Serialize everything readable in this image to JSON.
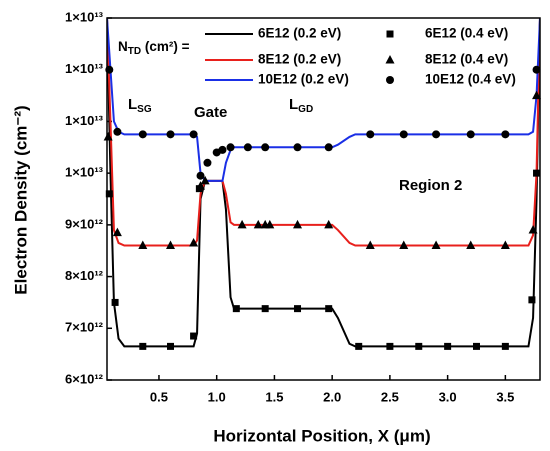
{
  "chart_data": {
    "type": "line",
    "xlabel": "Horizontal Position, X (μm)",
    "ylabel": "Electron Density (cm⁻²)",
    "xlim": [
      0.05,
      3.8
    ],
    "ylim": [
      6000000000000.0,
      13000000000000.0
    ],
    "xticks": [
      0.5,
      {
        "value": 1,
        "label": "1.0"
      },
      1.5,
      {
        "value": 2,
        "label": "2.0"
      },
      2.5,
      {
        "value": 3,
        "label": "3.0"
      },
      3.5
    ],
    "yticks": [
      {
        "value": 6000000000000.0,
        "label": "6×10¹²"
      },
      {
        "value": 7000000000000.0,
        "label": "7×10¹²"
      },
      {
        "value": 8000000000000.0,
        "label": "8×10¹²"
      },
      {
        "value": 9000000000000.0,
        "label": "9×10¹²"
      },
      {
        "value": 10000000000000.0,
        "label": "1×10¹³"
      },
      {
        "value": 11000000000000.0,
        "label": "1×10¹³"
      },
      {
        "value": 12000000000000.0,
        "label": "1×10¹³"
      },
      {
        "value": 13000000000000.0,
        "label": "1×10¹³"
      }
    ],
    "legend_title": {
      "base": "N",
      "sub": "TD",
      "after": " (cm²) ="
    },
    "legend": "top",
    "annotations": [
      {
        "base": "L",
        "sub": "SG"
      },
      {
        "base": "Gate"
      },
      {
        "base": "L",
        "sub": "GD"
      },
      {
        "base": "Region 2"
      }
    ],
    "series": [
      {
        "name": "6E12 (0.2 eV)",
        "color": "#000000",
        "kind": "line",
        "x": [
          0.05,
          0.08,
          0.11,
          0.15,
          0.2,
          0.8,
          0.83,
          0.86,
          0.9,
          1.05,
          1.08,
          1.12,
          1.15,
          2.0,
          2.05,
          2.15,
          2.2,
          3.7,
          3.74,
          3.77,
          3.8
        ],
        "values": [
          13000000000000.0,
          10000000000000.0,
          7500000000000.0,
          6800000000000.0,
          6650000000000.0,
          6650000000000.0,
          6900000000000.0,
          9500000000000.0,
          9850000000000.0,
          9850000000000.0,
          9300000000000.0,
          7600000000000.0,
          7380000000000.0,
          7380000000000.0,
          7200000000000.0,
          6700000000000.0,
          6650000000000.0,
          6650000000000.0,
          7200000000000.0,
          9500000000000.0,
          13000000000000.0
        ]
      },
      {
        "name": "8E12 (0.2 eV)",
        "color": "#e8201c",
        "kind": "line",
        "x": [
          0.05,
          0.08,
          0.11,
          0.15,
          0.2,
          0.8,
          0.83,
          0.86,
          0.9,
          1.05,
          1.08,
          1.12,
          1.15,
          2.0,
          2.05,
          2.15,
          2.2,
          3.7,
          3.74,
          3.77,
          3.8
        ],
        "values": [
          13000000000000.0,
          11000000000000.0,
          8900000000000.0,
          8650000000000.0,
          8600000000000.0,
          8600000000000.0,
          8700000000000.0,
          9600000000000.0,
          9850000000000.0,
          9850000000000.0,
          9600000000000.0,
          9050000000000.0,
          9000000000000.0,
          9000000000000.0,
          8900000000000.0,
          8650000000000.0,
          8600000000000.0,
          8600000000000.0,
          8800000000000.0,
          10000000000000.0,
          13000000000000.0
        ]
      },
      {
        "name": "10E12 (0.2 eV)",
        "color": "#1a2fe6",
        "kind": "line",
        "x": [
          0.05,
          0.08,
          0.11,
          0.15,
          0.2,
          0.8,
          0.83,
          0.86,
          0.9,
          1.05,
          1.08,
          1.12,
          1.15,
          2.0,
          2.05,
          2.15,
          2.2,
          3.7,
          3.74,
          3.77,
          3.8
        ],
        "values": [
          13000000000000.0,
          12000000000000.0,
          11000000000000.0,
          10800000000000.0,
          10750000000000.0,
          10750000000000.0,
          10700000000000.0,
          10000000000000.0,
          9850000000000.0,
          9850000000000.0,
          10200000000000.0,
          10450000000000.0,
          10500000000000.0,
          10500000000000.0,
          10550000000000.0,
          10700000000000.0,
          10750000000000.0,
          10750000000000.0,
          10800000000000.0,
          11500000000000.0,
          13000000000000.0
        ]
      },
      {
        "name": "6E12 (0.4 eV)",
        "color": "#000000",
        "kind": "square",
        "x": [
          0.07,
          0.12,
          0.36,
          0.6,
          0.8,
          0.85,
          1.17,
          1.42,
          1.7,
          1.97,
          2.23,
          2.5,
          2.75,
          3.0,
          3.25,
          3.5,
          3.73,
          3.77
        ],
        "values": [
          9600000000000.0,
          7500000000000.0,
          6650000000000.0,
          6650000000000.0,
          6850000000000.0,
          9700000000000.0,
          7380000000000.0,
          7380000000000.0,
          7380000000000.0,
          7380000000000.0,
          6650000000000.0,
          6650000000000.0,
          6650000000000.0,
          6650000000000.0,
          6650000000000.0,
          6650000000000.0,
          7550000000000.0,
          10000000000000.0
        ]
      },
      {
        "name": "8E12 (0.4 eV)",
        "color": "#000000",
        "kind": "triangle",
        "x": [
          0.06,
          0.14,
          0.36,
          0.6,
          0.8,
          0.86,
          0.9,
          1.22,
          1.36,
          1.42,
          1.46,
          1.7,
          1.97,
          2.33,
          2.62,
          2.9,
          3.2,
          3.5,
          3.74,
          3.77
        ],
        "values": [
          10700000000000.0,
          8850000000000.0,
          8600000000000.0,
          8600000000000.0,
          8650000000000.0,
          9750000000000.0,
          9850000000000.0,
          9000000000000.0,
          9000000000000.0,
          9000000000000.0,
          9000000000000.0,
          9000000000000.0,
          9000000000000.0,
          8600000000000.0,
          8600000000000.0,
          8600000000000.0,
          8600000000000.0,
          8600000000000.0,
          8900000000000.0,
          11500000000000.0
        ]
      },
      {
        "name": "10E12 (0.4 eV)",
        "color": "#000000",
        "kind": "circle",
        "x": [
          0.07,
          0.14,
          0.36,
          0.6,
          0.8,
          0.86,
          0.92,
          1.0,
          1.05,
          1.12,
          1.27,
          1.42,
          1.7,
          1.97,
          2.33,
          2.62,
          2.9,
          3.2,
          3.5,
          3.77
        ],
        "values": [
          12000000000000.0,
          10800000000000.0,
          10750000000000.0,
          10750000000000.0,
          10750000000000.0,
          9950000000000.0,
          10200000000000.0,
          10400000000000.0,
          10450000000000.0,
          10500000000000.0,
          10500000000000.0,
          10500000000000.0,
          10500000000000.0,
          10500000000000.0,
          10750000000000.0,
          10750000000000.0,
          10750000000000.0,
          10750000000000.0,
          10750000000000.0,
          12000000000000.0
        ]
      }
    ]
  }
}
